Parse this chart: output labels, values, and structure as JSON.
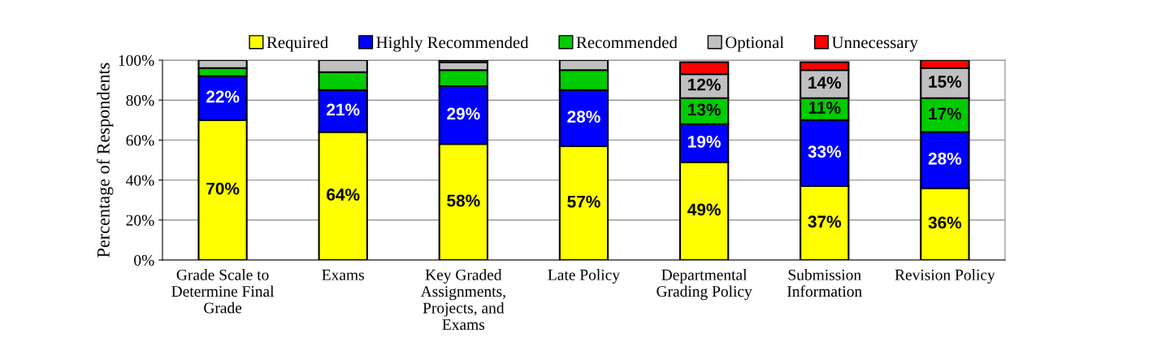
{
  "chart_data": {
    "type": "bar",
    "stacked": true,
    "ylabel": "Percentage of Respondents",
    "categories": [
      "Grade Scale to\nDetermine Final\nGrade",
      "Exams",
      "Key Graded\nAssignments,\nProjects, and\nExams",
      "Late Policy",
      "Departmental\nGrading Policy",
      "Submission\nInformation",
      "Revision Policy"
    ],
    "series": [
      {
        "name": "Required",
        "color": "#ffff00",
        "values": [
          70,
          64,
          58,
          57,
          49,
          37,
          36
        ],
        "value_labels": [
          "70%",
          "64%",
          "58%",
          "57%",
          "49%",
          "37%",
          "36%"
        ]
      },
      {
        "name": "Highly Recommended",
        "color": "#0000ff",
        "values": [
          22,
          21,
          29,
          28,
          19,
          33,
          28
        ],
        "value_labels": [
          "22%",
          "21%",
          "29%",
          "28%",
          "19%",
          "33%",
          "28%"
        ]
      },
      {
        "name": "Recommended",
        "color": "#00cc00",
        "values": [
          4,
          9,
          8,
          10,
          13,
          11,
          17
        ],
        "value_labels": [
          null,
          null,
          null,
          null,
          "13%",
          "11%",
          "17%"
        ]
      },
      {
        "name": "Optional",
        "color": "#c0c0c0",
        "values": [
          4,
          6,
          4,
          5,
          12,
          14,
          15
        ],
        "value_labels": [
          null,
          null,
          null,
          null,
          "12%",
          "14%",
          "15%"
        ]
      },
      {
        "name": "Unnecessary",
        "color": "#ff0000",
        "values": [
          0,
          0,
          1,
          0,
          6,
          4,
          4
        ],
        "value_labels": [
          null,
          null,
          null,
          null,
          null,
          null,
          null
        ]
      }
    ],
    "ylim": [
      0,
      100
    ],
    "yticks": [
      {
        "value": 0,
        "label": "0%"
      },
      {
        "value": 20,
        "label": "20%"
      },
      {
        "value": 40,
        "label": "40%"
      },
      {
        "value": 60,
        "label": "60%"
      },
      {
        "value": 80,
        "label": "80%"
      },
      {
        "value": 100,
        "label": "100%"
      }
    ],
    "grid": "y",
    "legend": "top"
  }
}
